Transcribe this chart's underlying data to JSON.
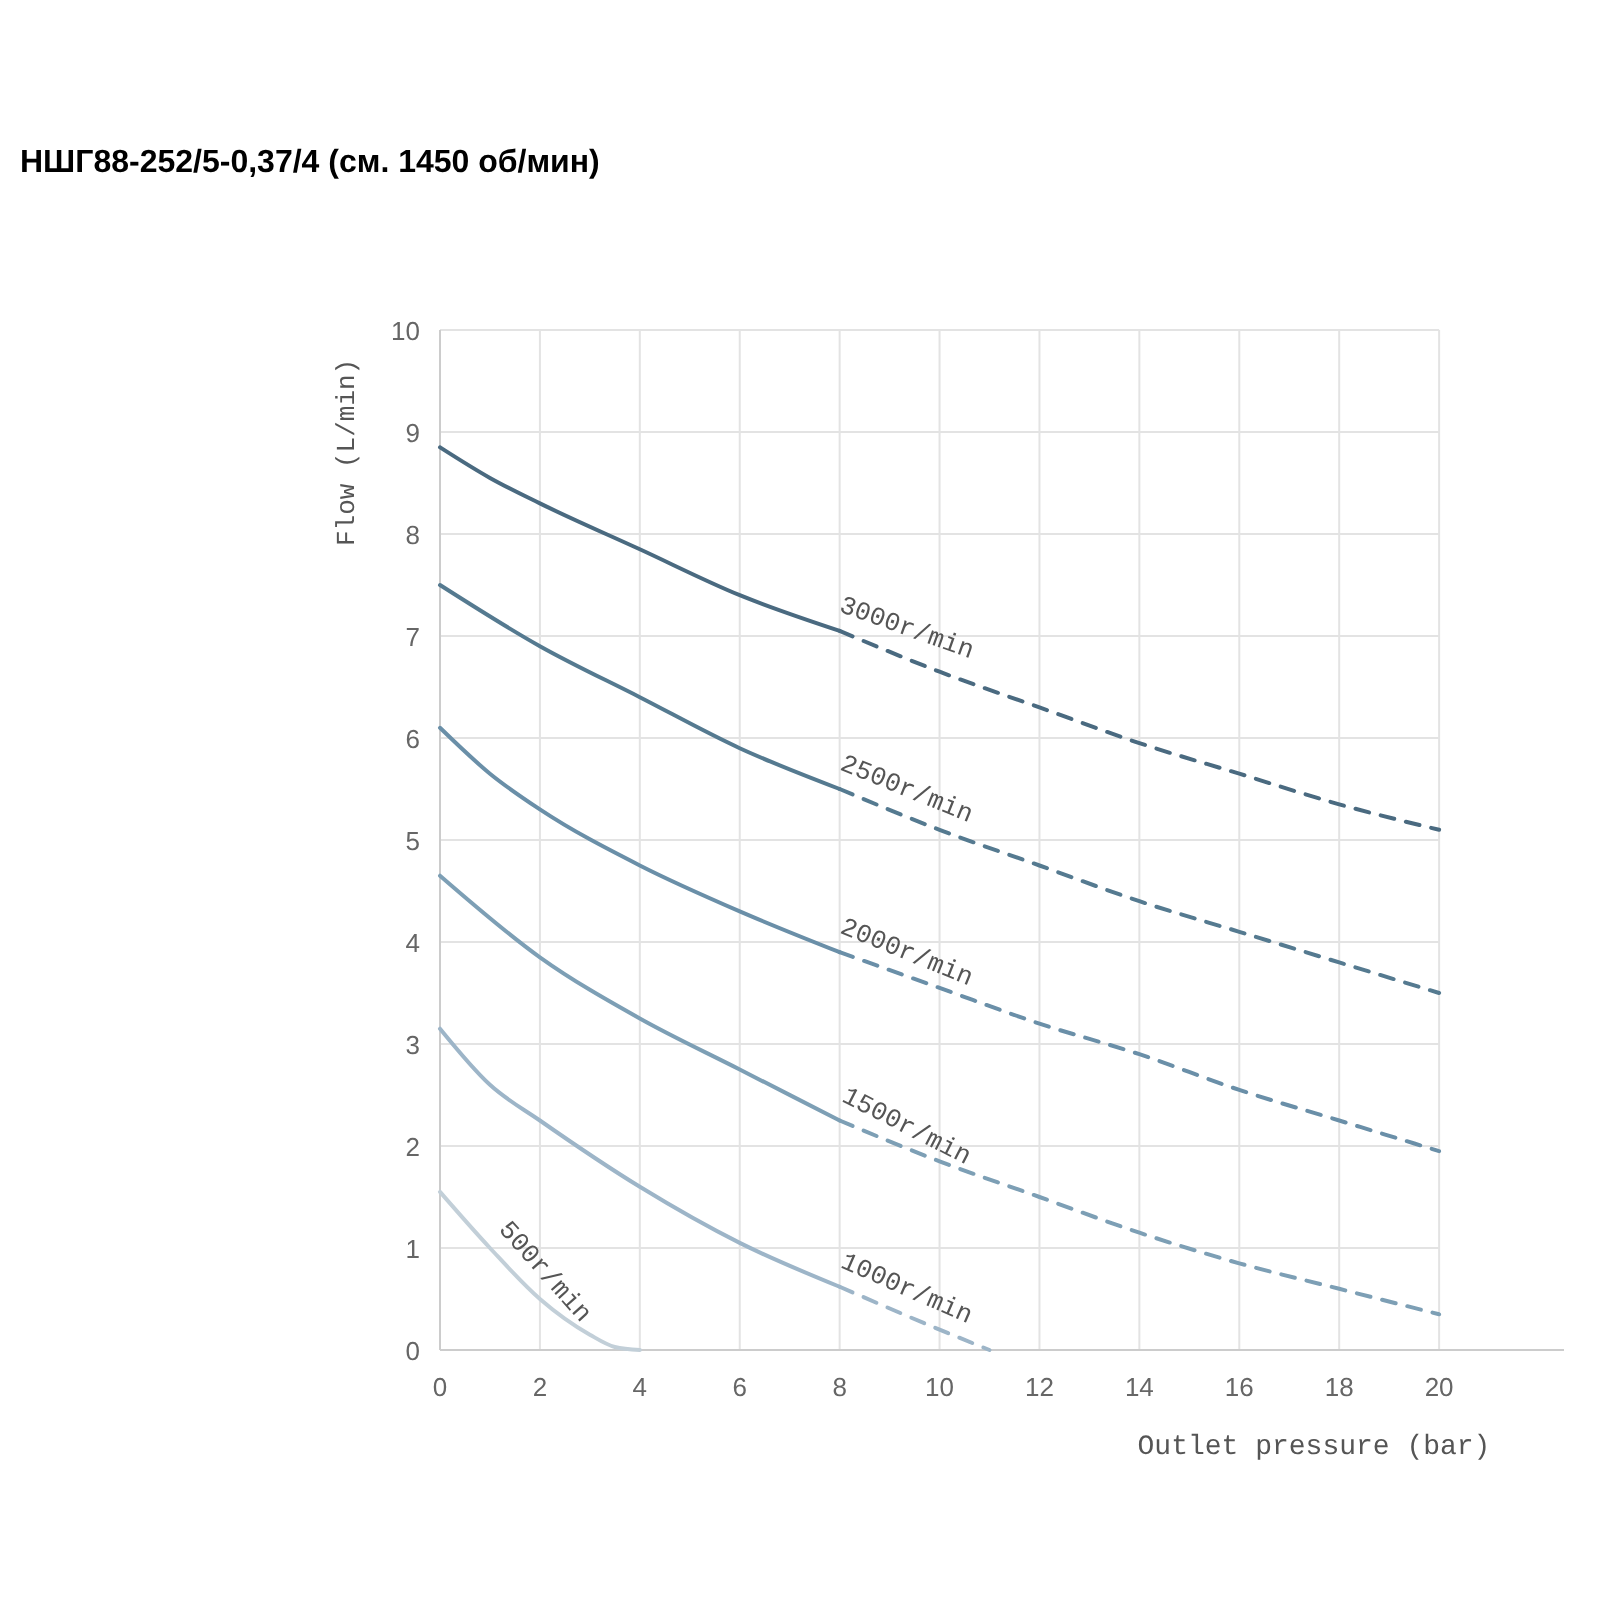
{
  "chart_data": {
    "type": "line",
    "title": "НШГ88-252/5-0,37/4 (см. 1450 об/мин)",
    "xlabel": "Outlet pressure (bar)",
    "ylabel": "Flow (L/min)",
    "xlim": [
      0,
      22.5
    ],
    "ylim": [
      0,
      10
    ],
    "xticks": [
      0,
      2,
      4,
      6,
      8,
      10,
      12,
      14,
      16,
      18,
      20
    ],
    "yticks": [
      0,
      1,
      2,
      3,
      4,
      5,
      6,
      7,
      8,
      9,
      10
    ],
    "grid": true,
    "series": [
      {
        "name": "3000r/min",
        "color": "#4a6a80",
        "line_style": "solid",
        "x": [
          0,
          1,
          2,
          4,
          6,
          8
        ],
        "values": [
          8.85,
          8.55,
          8.3,
          7.85,
          7.4,
          7.05
        ]
      },
      {
        "color": "#4a6a80",
        "line_style": "dashed",
        "x": [
          8,
          10,
          12,
          14,
          16,
          18,
          20
        ],
        "values": [
          7.05,
          6.65,
          6.3,
          5.95,
          5.65,
          5.35,
          5.1
        ]
      },
      {
        "name": "2500r/min",
        "color": "#557a90",
        "line_style": "solid",
        "x": [
          0,
          2,
          4,
          6,
          8
        ],
        "values": [
          7.5,
          6.9,
          6.4,
          5.9,
          5.5
        ]
      },
      {
        "color": "#557a90",
        "line_style": "dashed",
        "x": [
          8,
          10,
          12,
          14,
          16,
          18,
          20
        ],
        "values": [
          5.5,
          5.1,
          4.75,
          4.4,
          4.1,
          3.8,
          3.5
        ]
      },
      {
        "name": "2000r/min",
        "color": "#6a8fa8",
        "line_style": "solid",
        "x": [
          0,
          1,
          2,
          4,
          6,
          8
        ],
        "values": [
          6.1,
          5.65,
          5.3,
          4.75,
          4.3,
          3.9
        ]
      },
      {
        "color": "#6a8fa8",
        "line_style": "dashed",
        "x": [
          8,
          10,
          12,
          14,
          16,
          18,
          20
        ],
        "values": [
          3.9,
          3.55,
          3.2,
          2.9,
          2.55,
          2.25,
          1.95
        ]
      },
      {
        "name": "1500r/min",
        "color": "#7d9fb5",
        "line_style": "solid",
        "x": [
          0,
          2,
          4,
          6,
          8
        ],
        "values": [
          4.65,
          3.85,
          3.25,
          2.75,
          2.25
        ]
      },
      {
        "color": "#7d9fb5",
        "line_style": "dashed",
        "x": [
          8,
          10,
          12,
          14,
          16,
          18,
          20
        ],
        "values": [
          2.25,
          1.85,
          1.5,
          1.15,
          0.85,
          0.6,
          0.35
        ]
      },
      {
        "name": "1000r/min",
        "color": "#9db5c8",
        "line_style": "solid",
        "x": [
          0,
          1,
          2,
          4,
          6,
          8
        ],
        "values": [
          3.15,
          2.6,
          2.25,
          1.6,
          1.05,
          0.62
        ]
      },
      {
        "color": "#9db5c8",
        "line_style": "dashed",
        "x": [
          8,
          10,
          11
        ],
        "values": [
          0.62,
          0.2,
          0
        ]
      },
      {
        "name": "500r/min",
        "color": "#c2cfd8",
        "line_style": "solid",
        "x": [
          0,
          1,
          2,
          3,
          3.5,
          4
        ],
        "values": [
          1.55,
          1.0,
          0.5,
          0.15,
          0.03,
          0
        ]
      }
    ]
  }
}
